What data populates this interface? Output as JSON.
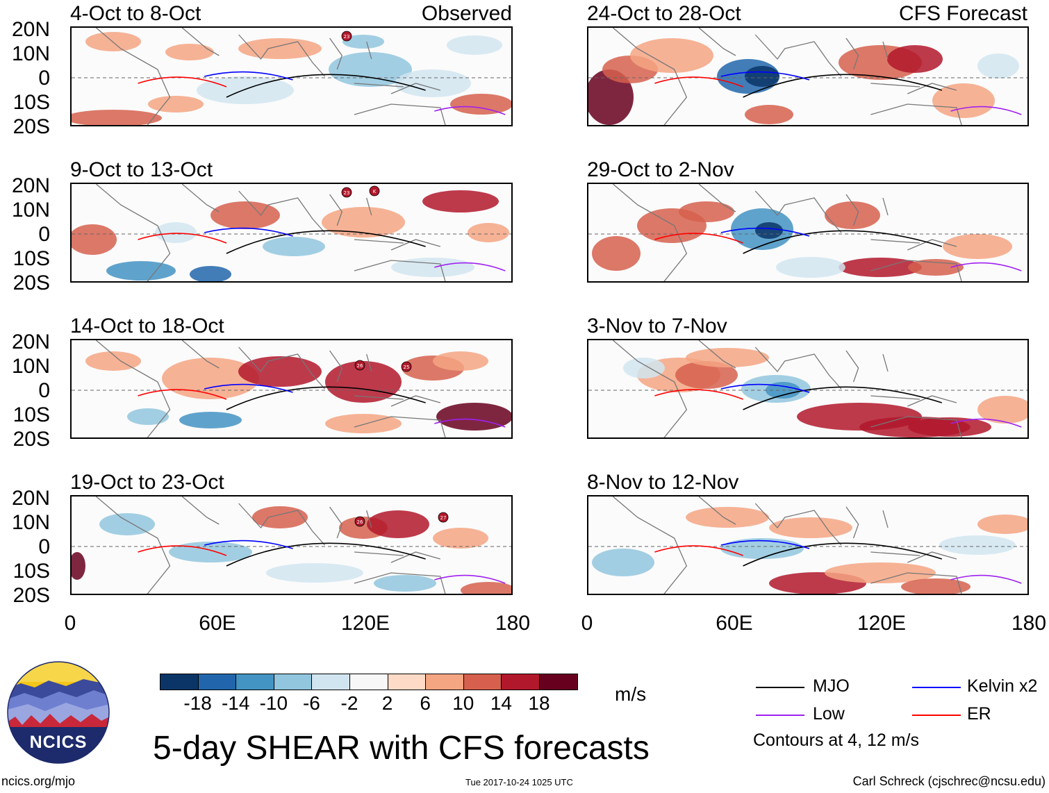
{
  "figure": {
    "title": "5-day SHEAR with CFS forecasts",
    "url": "ncics.org/mjo",
    "timestamp": "Tue 2017-10-24 1025 UTC",
    "credit": "Carl Schreck (cjschrec@ncsu.edu)",
    "logo_text": "NCICS"
  },
  "tags": {
    "observed": "Observed",
    "forecast": "CFS Forecast"
  },
  "panels_left": [
    {
      "title": "4-Oct to 8-Oct",
      "storms": [
        "23"
      ]
    },
    {
      "title": "9-Oct to 13-Oct",
      "storms": [
        "23",
        "K"
      ]
    },
    {
      "title": "14-Oct to 18-Oct",
      "storms": [
        "26",
        "25"
      ]
    },
    {
      "title": "19-Oct to 23-Oct",
      "storms": [
        "26",
        "27"
      ]
    }
  ],
  "panels_right": [
    {
      "title": "24-Oct to 28-Oct"
    },
    {
      "title": "29-Oct to 2-Nov"
    },
    {
      "title": "3-Nov to 7-Nov"
    },
    {
      "title": "8-Nov to 12-Nov"
    }
  ],
  "axes": {
    "lat_labels": [
      "20N",
      "10N",
      "0",
      "10S",
      "20S"
    ],
    "lon_labels": [
      "0",
      "60E",
      "120E",
      "180"
    ]
  },
  "colorbar": {
    "unit": "m/s",
    "labels": [
      "-18",
      "-14",
      "-10",
      "-6",
      "-2",
      "2",
      "6",
      "10",
      "14",
      "18"
    ],
    "colors": [
      "#0b3566",
      "#2166ac",
      "#4393c3",
      "#92c5de",
      "#d1e5f0",
      "#f7f7f7",
      "#fddbc7",
      "#f4a582",
      "#d6604d",
      "#b2182b",
      "#67001f"
    ]
  },
  "legend": {
    "items": [
      {
        "label": "MJO",
        "color": "#000000"
      },
      {
        "label": "Kelvin x2",
        "color": "#0000ff"
      },
      {
        "label": "Low",
        "color": "#a020f0"
      },
      {
        "label": "ER",
        "color": "#ff0000"
      }
    ],
    "note": "Contours at 4, 12 m/s"
  },
  "map": {
    "lon_range": [
      0,
      180
    ],
    "lat_range": [
      -20,
      20
    ],
    "variable": "Wind shear anomaly",
    "units": "m/s"
  }
}
